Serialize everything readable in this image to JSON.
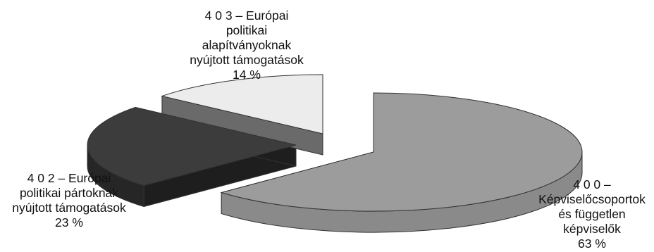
{
  "chart_data": {
    "type": "pie",
    "variant": "3d-exploded",
    "title": "",
    "slices": [
      {
        "label": "4 0 0 – Képviselőcsoportok és független képviselők",
        "value": 63,
        "value_label": "63 %",
        "label_lines": [
          "4 0 0 –",
          "Képviselőcsoportok",
          "és független",
          "képviselők",
          "63 %"
        ],
        "color": "#9c9c9c"
      },
      {
        "label": "4 0 2 – Európai politikai pártoknak nyújtott támogatások",
        "value": 23,
        "value_label": "23 %",
        "label_lines": [
          "4 0 2 – Európai",
          "politikai pártoknak",
          "nyújtott támogatások",
          "23 %"
        ],
        "color": "#3c3c3c"
      },
      {
        "label": "4 0 3 – Európai politikai alapítványoknak nyújtott támogatások",
        "value": 14,
        "value_label": "14 %",
        "label_lines": [
          "4 0 3 – Európai",
          "politikai",
          "alapítványoknak",
          "nyújtott támogatások",
          "14 %"
        ],
        "color": "#ececec"
      }
    ],
    "legend": "none",
    "labels": "outside"
  }
}
